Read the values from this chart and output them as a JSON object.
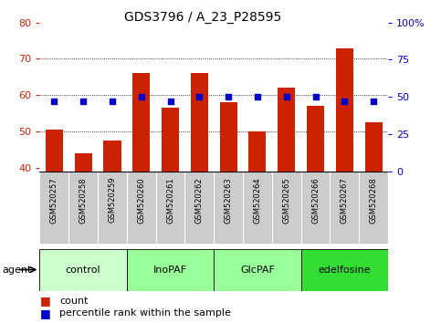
{
  "title": "GDS3796 / A_23_P28595",
  "samples": [
    "GSM520257",
    "GSM520258",
    "GSM520259",
    "GSM520260",
    "GSM520261",
    "GSM520262",
    "GSM520263",
    "GSM520264",
    "GSM520265",
    "GSM520266",
    "GSM520267",
    "GSM520268"
  ],
  "counts": [
    50.5,
    44.0,
    47.5,
    66.0,
    56.5,
    66.0,
    58.0,
    50.0,
    62.0,
    57.0,
    73.0,
    52.5
  ],
  "percentile_ranks": [
    47,
    47,
    47,
    50,
    47,
    50,
    50,
    50,
    50,
    50,
    47,
    47
  ],
  "ylim_left": [
    39,
    80
  ],
  "ylim_right": [
    0,
    100
  ],
  "yticks_left": [
    40,
    50,
    60,
    70,
    80
  ],
  "yticks_right": [
    0,
    25,
    50,
    75,
    100
  ],
  "ytick_labels_right": [
    "0",
    "25",
    "50",
    "75",
    "100%"
  ],
  "groups": [
    {
      "label": "control",
      "start": 0,
      "end": 3,
      "color": "#ccffcc"
    },
    {
      "label": "InoPAF",
      "start": 3,
      "end": 6,
      "color": "#99ff99"
    },
    {
      "label": "GlcPAF",
      "start": 6,
      "end": 9,
      "color": "#99ff99"
    },
    {
      "label": "edelfosine",
      "start": 9,
      "end": 12,
      "color": "#33dd33"
    }
  ],
  "bar_color": "#cc2200",
  "dot_color": "#0000cc",
  "left_axis_color": "#cc2200",
  "right_axis_color": "#0000cc",
  "legend_bar_label": "count",
  "legend_dot_label": "percentile rank within the sample",
  "bar_bottom": 39
}
